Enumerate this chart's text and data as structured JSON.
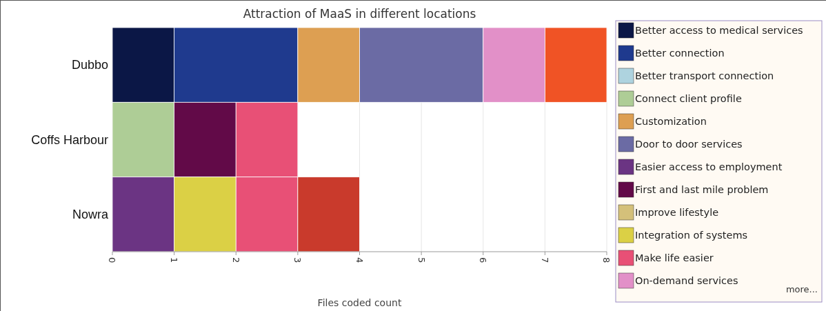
{
  "chart_data": {
    "type": "bar",
    "orientation": "horizontal",
    "stacked": true,
    "title": "Attraction of MaaS in different locations",
    "xlabel": "Files coded count",
    "categories": [
      "Dubbo",
      "Coffs Harbour",
      "Nowra"
    ],
    "xlim": [
      0,
      8
    ],
    "xticks": [
      0,
      1,
      2,
      3,
      4,
      5,
      6,
      7,
      8
    ],
    "grid": "x",
    "legend": "right",
    "annotations": [
      "more..."
    ],
    "series": [
      {
        "name": "Better access to medical services",
        "color": "#0b1746",
        "values": [
          1,
          0,
          0
        ]
      },
      {
        "name": "Better connection",
        "color": "#1f3a8e",
        "values": [
          2,
          0,
          0
        ]
      },
      {
        "name": "Better transport connection",
        "color": "#aed3df",
        "values": [
          0,
          0,
          0
        ]
      },
      {
        "name": "Connect client profile",
        "color": "#aecd96",
        "values": [
          0,
          1,
          0
        ]
      },
      {
        "name": "Customization",
        "color": "#dd9f52",
        "values": [
          1,
          0,
          0
        ]
      },
      {
        "name": "Door to door services",
        "color": "#6b6ba4",
        "values": [
          2,
          0,
          0
        ]
      },
      {
        "name": "Easier access to employment",
        "color": "#6b3483",
        "values": [
          0,
          0,
          1
        ]
      },
      {
        "name": "First and last mile problem",
        "color": "#620a48",
        "values": [
          0,
          1,
          0
        ]
      },
      {
        "name": "Improve lifestyle",
        "color": "#d4c07a",
        "values": [
          0,
          0,
          0
        ]
      },
      {
        "name": "Integration of systems",
        "color": "#dbd045",
        "values": [
          0,
          0,
          1
        ]
      },
      {
        "name": "Make life easier",
        "color": "#e85076",
        "values": [
          0,
          1,
          1
        ]
      },
      {
        "name": "On-demand services",
        "color": "#e290c8",
        "values": [
          1,
          0,
          0
        ]
      },
      {
        "color": "#f05325",
        "values": [
          1,
          0,
          0
        ]
      },
      {
        "color": "#c93a2c",
        "values": [
          0,
          0,
          1
        ]
      }
    ]
  }
}
